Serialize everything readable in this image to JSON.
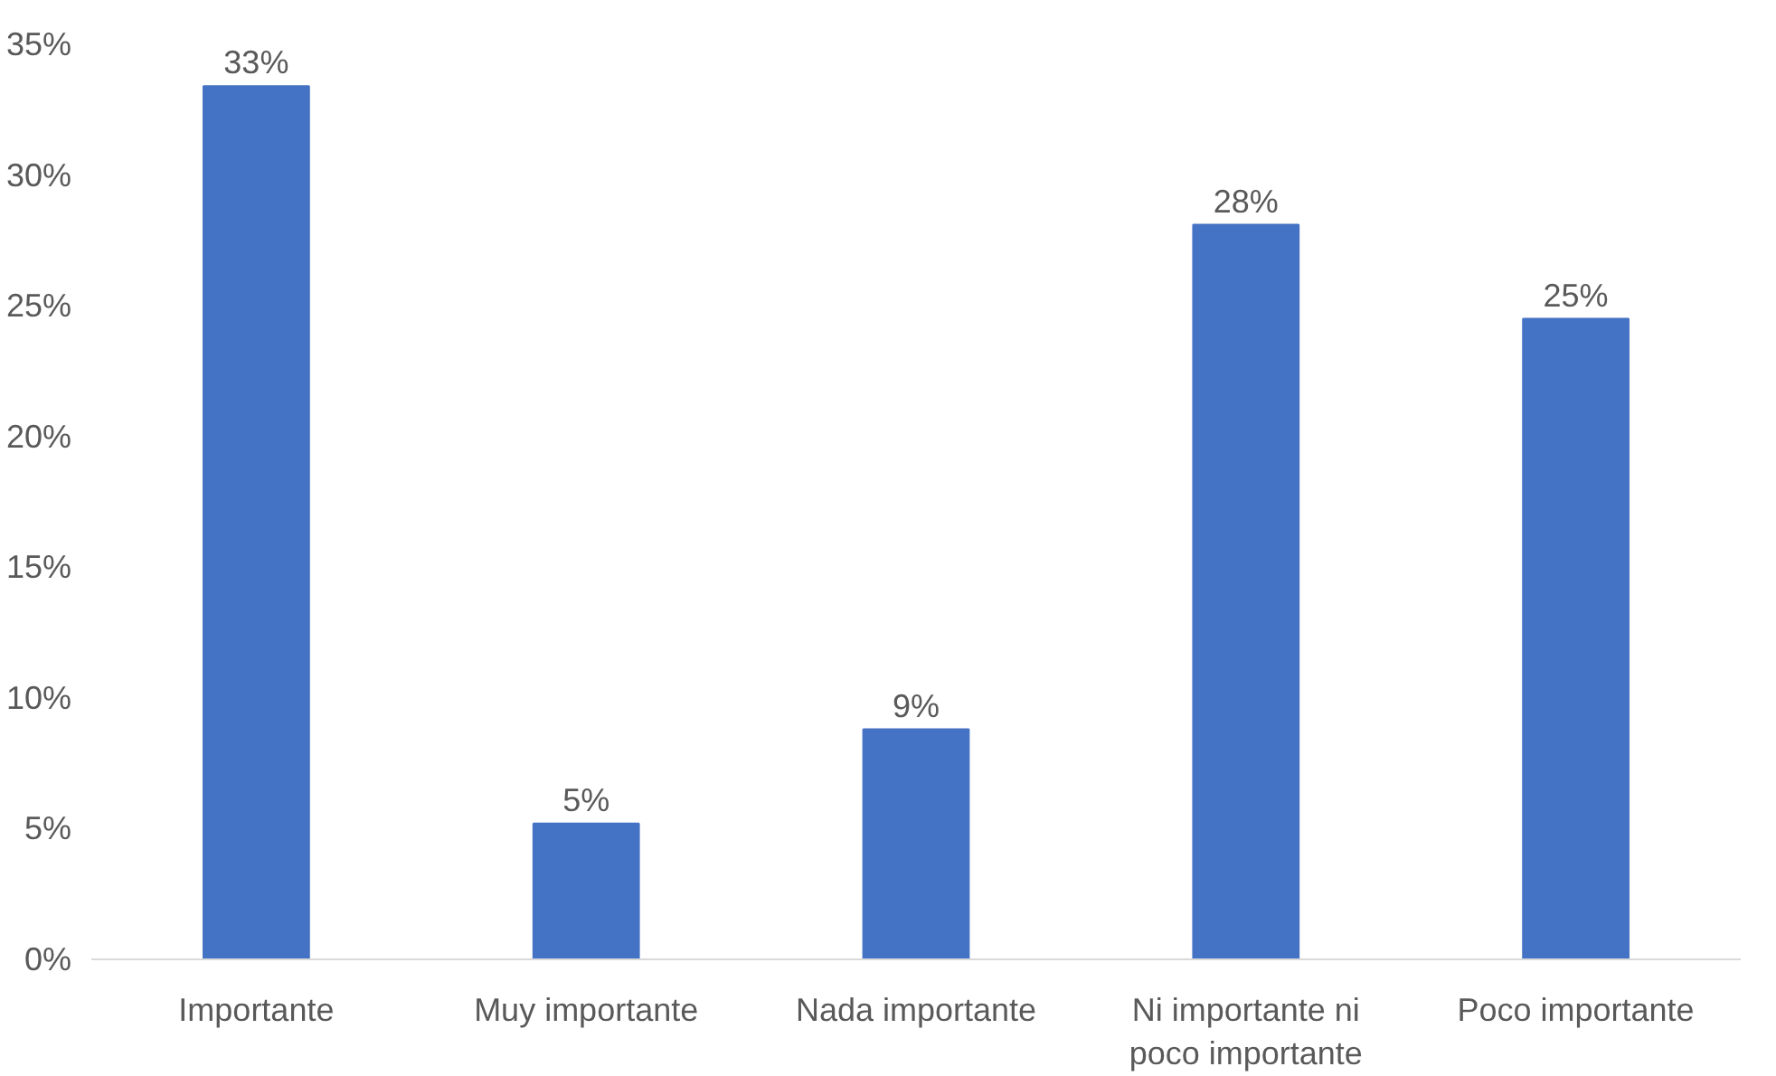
{
  "chart_data": {
    "type": "bar",
    "categories": [
      "Importante",
      "Muy importante",
      "Nada importante",
      "Ni importante ni poco importante",
      "Poco importante"
    ],
    "values": [
      33.4,
      5.2,
      8.8,
      28.1,
      24.5
    ],
    "value_labels": [
      "33%",
      "5%",
      "9%",
      "28%",
      "25%"
    ],
    "color": "#4472c4",
    "ylim": [
      0,
      35
    ],
    "yticks": [
      {
        "value": 0,
        "label": "0%"
      },
      {
        "value": 5,
        "label": "5%"
      },
      {
        "value": 10,
        "label": "10%"
      },
      {
        "value": 15,
        "label": "15%"
      },
      {
        "value": 20,
        "label": "20%"
      },
      {
        "value": 25,
        "label": "25%"
      },
      {
        "value": 30,
        "label": "30%"
      },
      {
        "value": 35,
        "label": "35%"
      }
    ],
    "grid": false
  }
}
